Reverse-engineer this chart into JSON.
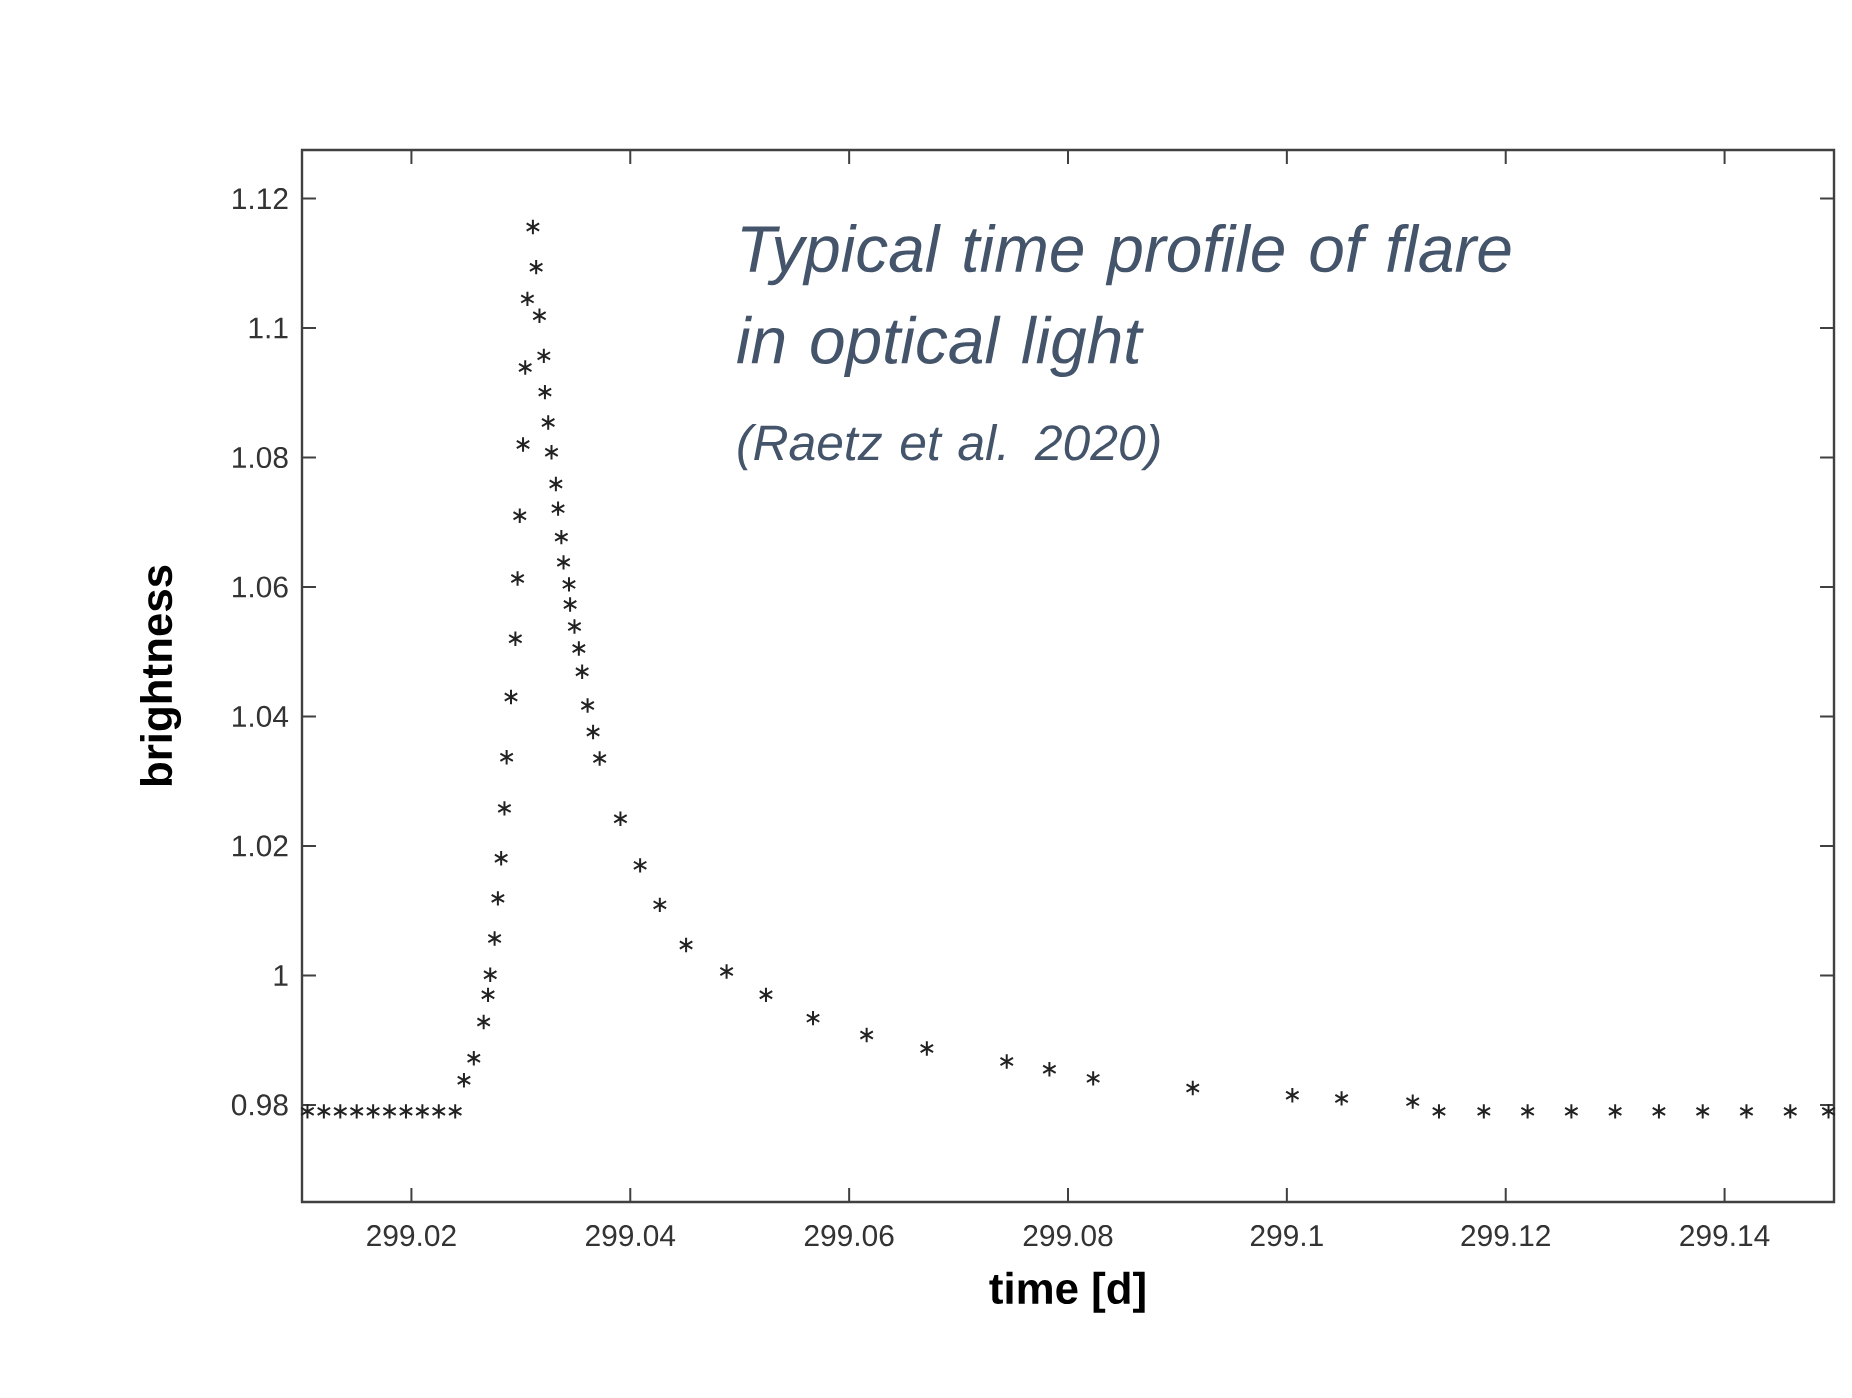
{
  "chart_data": {
    "type": "scatter",
    "xlabel": "time [d]",
    "ylabel": "brightness",
    "annotations": [
      "*Typical time profile of flare in optical light*",
      "*(Raetz et al. 2020)*"
    ],
    "xlim": [
      299.01,
      299.15
    ],
    "ylim": [
      0.965,
      1.1275
    ],
    "xticks": [
      299.02,
      299.04,
      299.06,
      299.08,
      299.1,
      299.12,
      299.14
    ],
    "yticks": [
      0.98,
      1,
      1.02,
      1.04,
      1.06,
      1.08,
      1.1,
      1.12
    ],
    "marker": "cross",
    "grid": false,
    "series": [
      {
        "color": "#222222",
        "x": [
          299.0105,
          299.012,
          299.0135,
          299.015,
          299.0165,
          299.018,
          299.0195,
          299.021,
          299.0225,
          299.024,
          299.0248,
          299.0257,
          299.0266,
          299.027,
          299.0272,
          299.0276,
          299.0279,
          299.0282,
          299.0285,
          299.0287,
          299.0291,
          299.0295,
          299.0297,
          299.0299,
          299.0302,
          299.0304,
          299.0306,
          299.0311,
          299.0314,
          299.0317,
          299.0321,
          299.0322,
          299.0325,
          299.0328,
          299.0332,
          299.0334,
          299.0337,
          299.0339,
          299.0344,
          299.0345,
          299.0349,
          299.0353,
          299.0356,
          299.0361,
          299.0366,
          299.0372,
          299.0391,
          299.0409,
          299.0427,
          299.0451,
          299.0488,
          299.0524,
          299.0567,
          299.0616,
          299.0671,
          299.0744,
          299.0783,
          299.0823,
          299.0914,
          299.1005,
          299.105,
          299.1115,
          299.1139,
          299.118,
          299.122,
          299.126,
          299.13,
          299.134,
          299.138,
          299.142,
          299.146,
          299.1495
        ],
        "values": [
          0.979,
          0.979,
          0.979,
          0.979,
          0.979,
          0.979,
          0.979,
          0.979,
          0.979,
          0.979,
          0.9838,
          0.9872,
          0.9928,
          0.997,
          1.0001,
          1.0057,
          1.0119,
          1.0181,
          1.0258,
          1.0337,
          1.043,
          1.052,
          1.0613,
          1.071,
          1.082,
          1.0939,
          1.1045,
          1.1156,
          1.1094,
          1.1019,
          1.0957,
          1.0901,
          1.0854,
          1.0808,
          1.0759,
          1.0721,
          1.0677,
          1.0638,
          1.0604,
          1.0573,
          1.0539,
          1.0505,
          1.0469,
          1.0417,
          1.0376,
          1.0335,
          1.0242,
          1.017,
          1.0109,
          1.0047,
          1.0006,
          0.997,
          0.9934,
          0.9908,
          0.9887,
          0.9867,
          0.9855,
          0.9841,
          0.9826,
          0.9815,
          0.981,
          0.9805,
          0.979,
          0.979,
          0.979,
          0.979,
          0.979,
          0.979,
          0.979,
          0.979,
          0.979,
          0.979
        ]
      }
    ]
  }
}
